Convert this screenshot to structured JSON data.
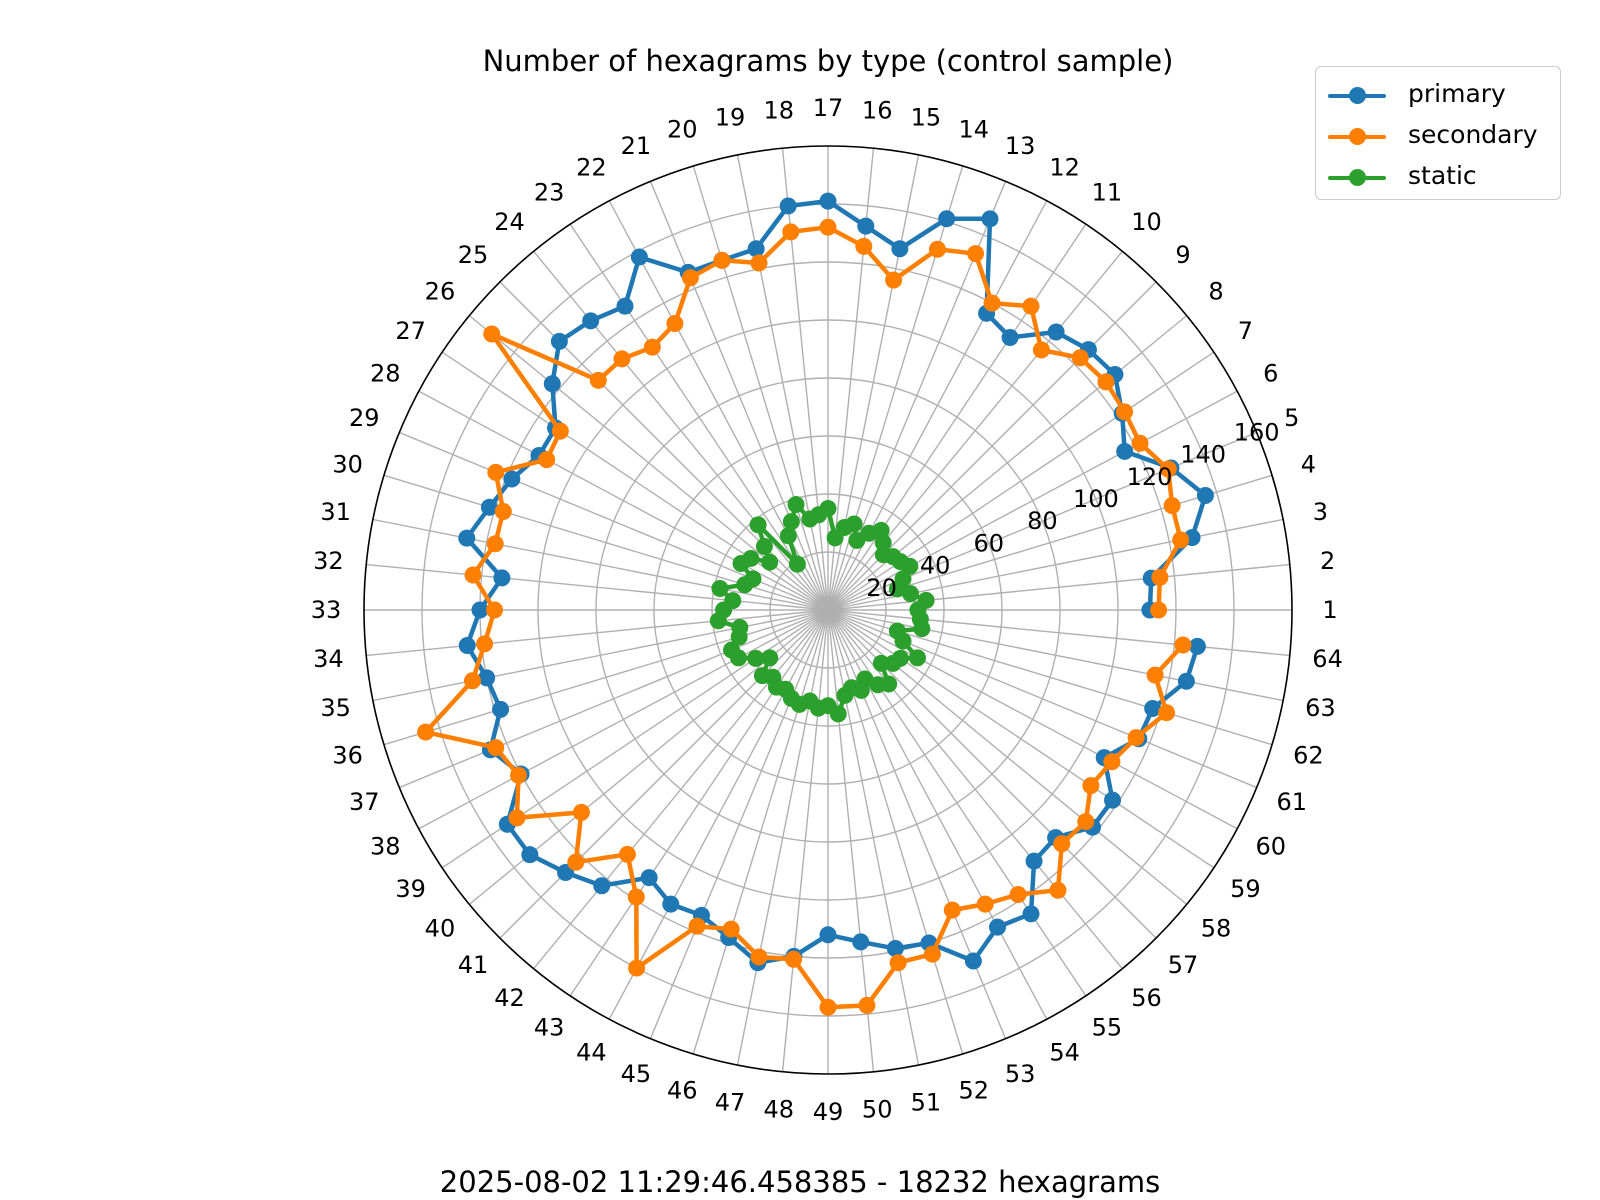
{
  "chart_data": {
    "type": "line",
    "subtype": "polar",
    "title": "Number of hexagrams by type (control sample)",
    "footer": "2025-08-02 11:29:46.458385 - 18232 hexagrams",
    "categories": [
      "1",
      "2",
      "3",
      "4",
      "5",
      "6",
      "7",
      "8",
      "9",
      "10",
      "11",
      "12",
      "13",
      "14",
      "15",
      "16",
      "17",
      "18",
      "19",
      "20",
      "21",
      "22",
      "23",
      "24",
      "25",
      "26",
      "27",
      "28",
      "29",
      "30",
      "31",
      "32",
      "33",
      "34",
      "35",
      "36",
      "37",
      "38",
      "39",
      "40",
      "41",
      "42",
      "43",
      "44",
      "45",
      "46",
      "47",
      "48",
      "49",
      "50",
      "51",
      "52",
      "53",
      "54",
      "55",
      "56",
      "57",
      "58",
      "59",
      "60",
      "61",
      "62",
      "63",
      "64"
    ],
    "r_ticks": [
      "20",
      "40",
      "60",
      "80",
      "100",
      "120",
      "140",
      "160"
    ],
    "rlim": [
      0,
      160
    ],
    "grid": true,
    "legend_position": "top-right",
    "series": [
      {
        "name": "primary",
        "color": "#1f77b4",
        "values": [
          111,
          112,
          128,
          136,
          128,
          116,
          122,
          128,
          127,
          124,
          113,
          116,
          146,
          141,
          127,
          133,
          141,
          140,
          127,
          126,
          126,
          138,
          126,
          129,
          131,
          123,
          113,
          113,
          118,
          122,
          127,
          113,
          120,
          125,
          120,
          118,
          126,
          120,
          133,
          133,
          128,
          123,
          111,
          115,
          114,
          118,
          124,
          120,
          112,
          115,
          119,
          120,
          131,
          124,
          126,
          112,
          111,
          118,
          118,
          108,
          116,
          117,
          126,
          128
        ]
      },
      {
        "name": "secondary",
        "color": "#ff7f00",
        "values": [
          114,
          115,
          124,
          124,
          127,
          122,
          123,
          124,
          123,
          116,
          126,
          120,
          133,
          130,
          116,
          126,
          132,
          131,
          122,
          126,
          124,
          112,
          109,
          112,
          112,
          150,
          111,
          110,
          124,
          117,
          117,
          123,
          115,
          119,
          125,
          145,
          124,
          121,
          129,
          110,
          123,
          109,
          119,
          140,
          118,
          115,
          122,
          121,
          137,
          137,
          124,
          124,
          112,
          115,
          118,
          125,
          114,
          115,
          109,
          111,
          115,
          122,
          115,
          123
        ]
      },
      {
        "name": "static",
        "color": "#2ca02c",
        "values": [
          31,
          34,
          29,
          25,
          28,
          32,
          30,
          29,
          27,
          30,
          33,
          30,
          26,
          31,
          29,
          25,
          35,
          33,
          32,
          38,
          33,
          29,
          19,
          38,
          31,
          26,
          32,
          34,
          28,
          30,
          38,
          33,
          36,
          38,
          31,
          32,
          36,
          35,
          30,
          26,
          32,
          30,
          32,
          31,
          33,
          34,
          32,
          34,
          33,
          36,
          30,
          28,
          30,
          27,
          31,
          33,
          26,
          29,
          30,
          35,
          28,
          25,
          33,
          32
        ]
      }
    ]
  }
}
